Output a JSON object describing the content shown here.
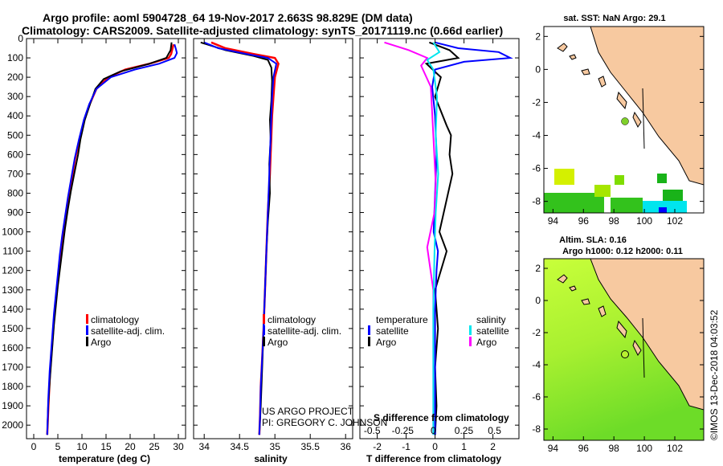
{
  "title": {
    "line1": "Argo profile: aoml 5904728_64 19-Nov-2017 2.663S 98.829E (DM data)",
    "line2": "Climatology: CARS2009. Satellite-adjusted climatology: synTS_20171119.nc (0.66d earlier)"
  },
  "colors": {
    "climatology": "#ff0000",
    "satellite": "#0000ff",
    "argo": "#000000",
    "sat_salinity": "#00e5ee",
    "argo_salinity": "#ff00ff",
    "land": "#f7c9a0",
    "ocean": "#ffffff"
  },
  "depth_axis": {
    "ticks": [
      "0",
      "100",
      "200",
      "300",
      "400",
      "500",
      "600",
      "700",
      "800",
      "900",
      "1000",
      "1100",
      "1200",
      "1300",
      "1400",
      "1500",
      "1600",
      "1700",
      "1800",
      "1900",
      "2000"
    ]
  },
  "chart_data": [
    {
      "type": "line",
      "name": "temperature",
      "xlabel": "temperature (deg C)",
      "xlim": [
        -1.5,
        31.5
      ],
      "ylim": [
        0,
        2070
      ],
      "xticks": [
        "0",
        "5",
        "10",
        "15",
        "20",
        "25",
        "30"
      ],
      "legend": [
        "climatology",
        "satellite-adj. clim.",
        "Argo"
      ],
      "series": [
        {
          "name": "climatology",
          "x": [
            29.0,
            28.8,
            28.5,
            28,
            24,
            19,
            15.5,
            13,
            11.6,
            10.5,
            9.5,
            8.6,
            7.9,
            7.2,
            6.6,
            6.0,
            5.5,
            5.1,
            4.7,
            4.3,
            4.0,
            3.7,
            3.4,
            3.1,
            2.8
          ],
          "y": [
            30,
            50,
            80,
            100,
            130,
            160,
            200,
            260,
            340,
            420,
            520,
            620,
            720,
            820,
            920,
            1020,
            1120,
            1220,
            1320,
            1420,
            1520,
            1620,
            1720,
            1870,
            2050
          ]
        },
        {
          "name": "satellite-adj. clim.",
          "x": [
            29.2,
            29.5,
            29.7,
            29.2,
            26,
            21,
            16,
            13,
            11.5,
            10.4,
            9.4,
            8.5,
            7.8,
            7.1,
            6.5,
            5.9,
            5.4,
            5.0,
            4.6,
            4.2,
            3.9,
            3.6,
            3.3,
            3.0,
            2.8
          ],
          "y": [
            30,
            55,
            75,
            100,
            130,
            160,
            200,
            260,
            340,
            420,
            520,
            620,
            720,
            820,
            920,
            1020,
            1120,
            1220,
            1320,
            1420,
            1520,
            1620,
            1720,
            1870,
            2050
          ]
        },
        {
          "name": "Argo",
          "x": [
            28.6,
            28.4,
            27.5,
            24,
            18,
            14.5,
            12.8,
            11.8,
            10.6,
            9.7,
            9.2,
            8.4,
            7.7,
            7.1,
            6.5,
            6.0,
            5.5,
            5.0,
            4.6,
            4.2,
            3.9,
            3.6,
            3.3,
            3.0,
            2.8
          ],
          "y": [
            20,
            60,
            100,
            130,
            170,
            210,
            260,
            330,
            420,
            520,
            600,
            700,
            790,
            880,
            980,
            1080,
            1180,
            1280,
            1380,
            1480,
            1580,
            1680,
            1780,
            1900,
            2050
          ]
        }
      ]
    },
    {
      "type": "line",
      "name": "salinity",
      "xlabel": "salinity",
      "xlim": [
        33.85,
        36.1
      ],
      "ylim": [
        0,
        2070
      ],
      "xticks": [
        "34",
        "34.5",
        "35",
        "35.5",
        "36"
      ],
      "legend": [
        "climatology",
        "satellite-adj. clim.",
        "Argo"
      ],
      "series": [
        {
          "name": "climatology",
          "x": [
            34.1,
            34.3,
            34.7,
            35.0,
            35.05,
            35.0,
            34.98,
            34.96,
            34.95,
            34.93,
            34.9,
            34.88,
            34.86,
            34.84,
            34.82,
            34.8,
            34.79,
            34.78
          ],
          "y": [
            20,
            50,
            80,
            100,
            130,
            200,
            300,
            400,
            500,
            700,
            900,
            1100,
            1300,
            1500,
            1650,
            1800,
            1950,
            2050
          ]
        },
        {
          "name": "satellite-adj. clim.",
          "x": [
            34.0,
            34.2,
            34.6,
            34.9,
            35.02,
            34.98,
            34.96,
            34.95,
            34.94,
            34.92,
            34.9,
            34.88,
            34.86,
            34.84,
            34.82,
            34.8,
            34.79,
            34.78
          ],
          "y": [
            20,
            50,
            80,
            100,
            130,
            200,
            300,
            400,
            500,
            700,
            900,
            1100,
            1300,
            1500,
            1650,
            1800,
            1950,
            2050
          ]
        },
        {
          "name": "Argo",
          "x": [
            33.95,
            34.3,
            34.7,
            34.9,
            34.95,
            34.96,
            34.95,
            34.93,
            34.94,
            34.92,
            34.93,
            34.9,
            34.88,
            34.86,
            34.84,
            34.82,
            34.8,
            34.78
          ],
          "y": [
            20,
            60,
            90,
            110,
            150,
            220,
            320,
            420,
            520,
            650,
            800,
            950,
            1100,
            1300,
            1500,
            1700,
            1900,
            2050
          ]
        }
      ]
    },
    {
      "type": "line",
      "name": "difference",
      "xlabel": "T difference from climatology",
      "xlabel_top": "S difference from climatology",
      "xlim": [
        -2.6,
        2.9
      ],
      "s_xlim": [
        -0.6,
        0.7
      ],
      "ylim": [
        0,
        2070
      ],
      "xticks": [
        "-2",
        "-1",
        "0",
        "1",
        "2"
      ],
      "s_xticks": [
        "-0.5",
        "-0.25",
        "0",
        "0.25",
        "0.5"
      ],
      "legend_temperature": [
        "temperature",
        "satellite",
        "Argo"
      ],
      "legend_salinity": [
        "salinity",
        "satellite",
        "Argo"
      ],
      "series": [
        {
          "name": "T satellite",
          "x": [
            0.0,
            0.8,
            2.2,
            2.6,
            1.0,
            0.0,
            -0.1,
            0.0,
            0.05,
            0.0,
            -0.05,
            0.1,
            0.05,
            0.0,
            0.0,
            0.0,
            0.0,
            0.0
          ],
          "y": [
            20,
            50,
            70,
            100,
            120,
            160,
            250,
            400,
            600,
            800,
            1000,
            1100,
            1200,
            1400,
            1600,
            1800,
            1950,
            2050
          ]
        },
        {
          "name": "T Argo",
          "x": [
            -0.2,
            0.5,
            0.8,
            -0.3,
            0.2,
            0.0,
            0.4,
            0.55,
            0.5,
            0.6,
            0.3,
            0.15,
            0.4,
            0.0,
            0.1,
            0.0,
            0.05,
            0.0
          ],
          "y": [
            20,
            60,
            100,
            130,
            200,
            300,
            450,
            500,
            600,
            700,
            900,
            1000,
            1100,
            1300,
            1500,
            1700,
            1900,
            2050
          ]
        },
        {
          "name": "S satellite",
          "x": [
            0.0,
            0.05,
            -0.05,
            0.0,
            0.03,
            0.02,
            0.04,
            0.02,
            0.01,
            0.0,
            0.0,
            0.0
          ],
          "y": [
            20,
            70,
            110,
            160,
            300,
            500,
            700,
            900,
            1100,
            1400,
            1700,
            2050
          ]
        },
        {
          "name": "S Argo",
          "x": [
            -0.4,
            -0.2,
            -0.05,
            -0.1,
            -0.02,
            0.0,
            0.02,
            0.01,
            -0.05,
            0.0,
            0.0,
            0.0
          ],
          "y": [
            20,
            60,
            100,
            140,
            250,
            500,
            750,
            900,
            1080,
            1300,
            1600,
            2050
          ]
        }
      ]
    }
  ],
  "map_sst": {
    "title": "sat. SST: NaN Argo: 29.1",
    "xticks": [
      "94",
      "96",
      "98",
      "100",
      "102"
    ],
    "yticks": [
      "2",
      "0",
      "-2",
      "-4",
      "-6",
      "-8"
    ]
  },
  "map_sla": {
    "title1": "Altim. SLA: 0.16",
    "title2": "Argo h1000: 0.12 h2000: 0.11",
    "xticks": [
      "94",
      "96",
      "98",
      "100",
      "102"
    ],
    "yticks": [
      "2",
      "0",
      "-2",
      "-4",
      "-6",
      "-8"
    ]
  },
  "credit": {
    "line1": "US ARGO PROJECT",
    "line2": "PI: GREGORY C. JOHNSON"
  },
  "watermark": "©IMOS 13-Dec-2018 04:03:52"
}
